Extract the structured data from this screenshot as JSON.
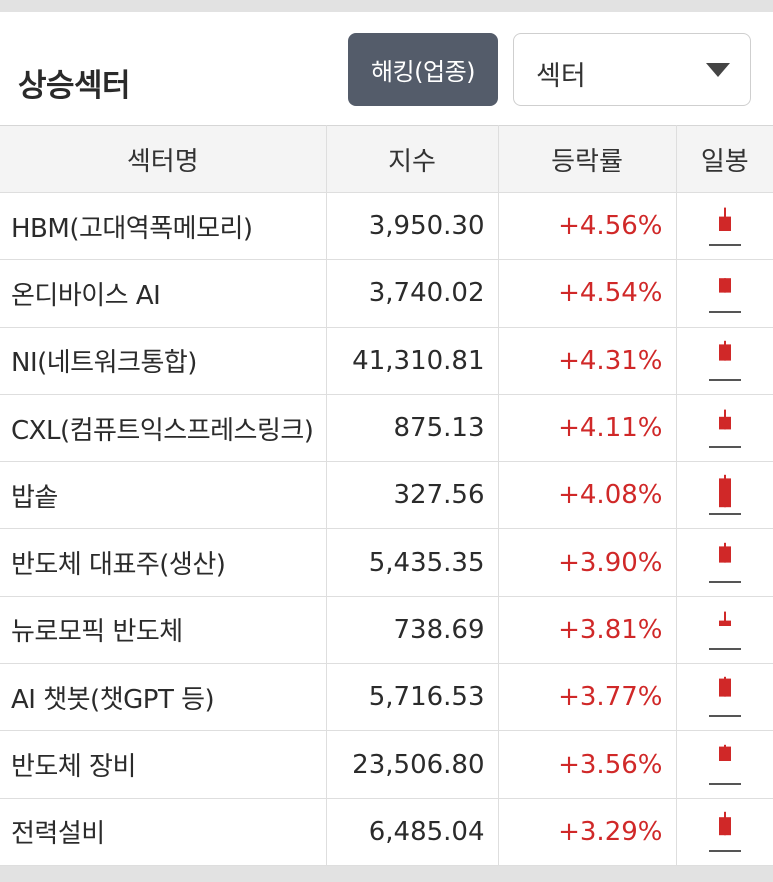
{
  "header": {
    "title": "상승섹터",
    "hedge_button": "해킹(업종)",
    "sector_select": "섹터"
  },
  "table": {
    "columns": [
      "섹터명",
      "지수",
      "등락률",
      "일봉"
    ],
    "rows": [
      {
        "name": "HBM(고대역폭메모리)",
        "index": "3,950.30",
        "change": "+4.56%",
        "candle": {
          "wick_top": 0.1,
          "body_top": 0.35,
          "body_bottom": 0.75
        }
      },
      {
        "name": "온디바이스 AI",
        "index": "3,740.02",
        "change": "+4.54%",
        "candle": {
          "wick_top": 0.2,
          "body_top": 0.2,
          "body_bottom": 0.6
        }
      },
      {
        "name": "NI(네트워크통합)",
        "index": "41,310.81",
        "change": "+4.31%",
        "candle": {
          "wick_top": 0.05,
          "body_top": 0.15,
          "body_bottom": 0.6
        }
      },
      {
        "name": "CXL(컴퓨트익스프레스링크)",
        "index": "875.13",
        "change": "+4.11%",
        "candle": {
          "wick_top": 0.1,
          "body_top": 0.3,
          "body_bottom": 0.65
        }
      },
      {
        "name": "밥솥",
        "index": "327.56",
        "change": "+4.08%",
        "candle": {
          "wick_top": 0.05,
          "body_top": 0.15,
          "body_bottom": 0.95
        }
      },
      {
        "name": "반도체 대표주(생산)",
        "index": "5,435.35",
        "change": "+3.90%",
        "candle": {
          "wick_top": 0.05,
          "body_top": 0.15,
          "body_bottom": 0.6
        }
      },
      {
        "name": "뉴로모픽 반도체",
        "index": "738.69",
        "change": "+3.81%",
        "candle": {
          "wick_top": 0.1,
          "body_top": 0.35,
          "body_bottom": 0.5
        }
      },
      {
        "name": "AI 챗봇(챗GPT 등)",
        "index": "5,716.53",
        "change": "+3.77%",
        "candle": {
          "wick_top": 0.05,
          "body_top": 0.1,
          "body_bottom": 0.6
        }
      },
      {
        "name": "반도체 장비",
        "index": "23,506.80",
        "change": "+3.56%",
        "candle": {
          "wick_top": 0.05,
          "body_top": 0.1,
          "body_bottom": 0.5
        }
      },
      {
        "name": "전력설비",
        "index": "6,485.04",
        "change": "+3.29%",
        "candle": {
          "wick_top": 0.05,
          "body_top": 0.2,
          "body_bottom": 0.7
        }
      }
    ]
  },
  "colors": {
    "up": "#d02828",
    "baseline": "#555555",
    "button_bg": "#545c6a"
  }
}
